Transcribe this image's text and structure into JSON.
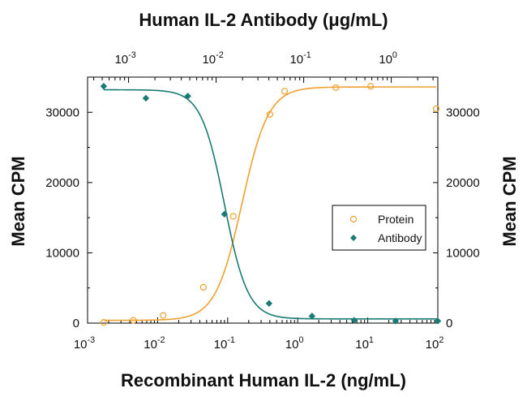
{
  "chart_data": {
    "type": "scatter",
    "title": "Human IL-2 Antibody (μg/mL)",
    "xlabel": "Recombinant Human IL-2 (ng/mL)",
    "ylabel_left": "Mean CPM",
    "ylabel_right": "Mean CPM",
    "x_scale": "log",
    "xlim": [
      0.001,
      100
    ],
    "ylim": [
      0,
      35000
    ],
    "bottom_ticks": [
      "10",
      "10",
      "10",
      "10",
      "10",
      "10"
    ],
    "bottom_tick_exponents": [
      "-3",
      "-2",
      "-1",
      "0",
      "1",
      "2"
    ],
    "bottom_tick_values": [
      0.001,
      0.01,
      0.1,
      1,
      10,
      100
    ],
    "top_axis": {
      "scale": "log",
      "xlim_map": [
        0.00034,
        3.4
      ],
      "ticks": [
        "10",
        "10",
        "10",
        "10"
      ],
      "tick_exponents": [
        "-3",
        "-2",
        "-1",
        "0"
      ],
      "tick_values": [
        0.001,
        0.01,
        0.1,
        1
      ]
    },
    "y_ticks": [
      "0",
      "10000",
      "20000",
      "30000"
    ],
    "y_tick_values": [
      0,
      10000,
      20000,
      30000
    ],
    "legend_position": "center-right",
    "series": [
      {
        "name": "Protein",
        "marker": "circle-open",
        "color": "#f0a030",
        "x": [
          0.0017,
          0.0045,
          0.012,
          0.045,
          0.12,
          0.4,
          0.65,
          3.5,
          11,
          95
        ],
        "y": [
          100,
          400,
          1100,
          5100,
          15200,
          29700,
          33000,
          33500,
          33700,
          30500
        ],
        "fit": {
          "bottom": 400,
          "top": 33600,
          "ec50": 0.16,
          "hill": 2.3
        }
      },
      {
        "name": "Antibody",
        "marker": "diamond-filled",
        "color": "#1a7a74",
        "x": [
          0.0017,
          0.0068,
          0.027,
          0.09,
          0.39,
          1.6,
          6.4,
          25,
          100
        ],
        "y": [
          33700,
          32000,
          32300,
          15500,
          2800,
          1000,
          400,
          300,
          300
        ],
        "fit": {
          "bottom": 600,
          "top": 33200,
          "ec50": 0.09,
          "hill": 2.6
        }
      }
    ]
  }
}
